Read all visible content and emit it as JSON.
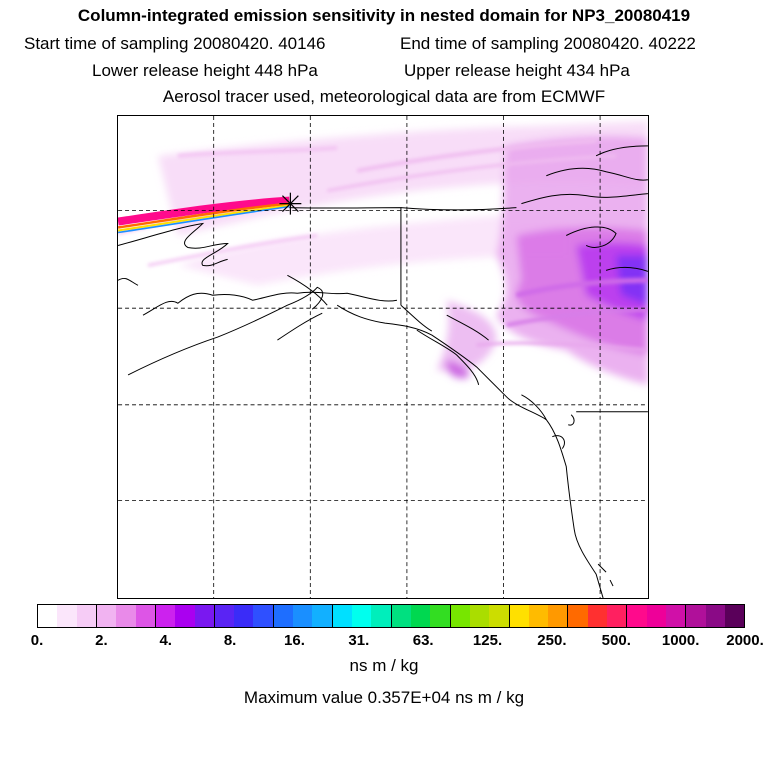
{
  "title": "Column-integrated emission sensitivity in nested domain for NP3_20080419",
  "sampling": {
    "start": "Start time of sampling 20080420. 40146",
    "end": "End time of sampling 20080420. 40222"
  },
  "release": {
    "lower": "Lower release height  448 hPa",
    "upper": "Upper release height  434 hPa"
  },
  "description": "Aerosol tracer used, meteorological data are from ECMWF",
  "colorbar": {
    "labels": [
      "0.",
      "2.",
      "4.",
      "8.",
      "16.",
      "31.",
      "63.",
      "125.",
      "250.",
      "500.",
      "1000.",
      "2000."
    ],
    "unit": "ns m / kg",
    "colors": [
      "#ffffff",
      "#fbe6fb",
      "#f6ccf6",
      "#f1b3f1",
      "#e98ae9",
      "#dd55e6",
      "#cc22ee",
      "#aa00f0",
      "#7a18f0",
      "#5a24f4",
      "#3a2cf8",
      "#2f50ff",
      "#1e6eff",
      "#1a8fff",
      "#12b0ff",
      "#00e0ff",
      "#00ffee",
      "#00eebb",
      "#00e080",
      "#00d850",
      "#33dd22",
      "#77e600",
      "#aadd00",
      "#ccdd00",
      "#ffe000",
      "#ffbb00",
      "#ff9900",
      "#ff6a00",
      "#ff3030",
      "#ff2060",
      "#ff0a8c",
      "#ee0099",
      "#d010a8",
      "#b0109a",
      "#8a0a86",
      "#5a005a"
    ]
  },
  "maximum": "Maximum value  0.357E+04 ns m / kg"
}
